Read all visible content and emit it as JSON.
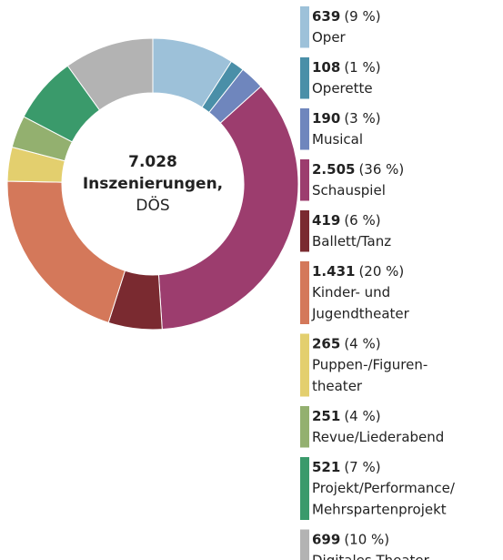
{
  "chart_data": {
    "type": "pie",
    "center_text": {
      "total": {
        "value": 7028,
        "label": "7.028"
      },
      "lines": [
        "Inszenierungen,",
        "DÖS"
      ]
    },
    "categories": [
      [
        "Oper"
      ],
      [
        "Operette"
      ],
      [
        "Musical"
      ],
      [
        "Schauspiel"
      ],
      [
        "Ballett/Tanz"
      ],
      [
        "Kinder- und",
        "Jugendtheater"
      ],
      [
        "Puppen-/Figuren-",
        "theater"
      ],
      [
        "Revue/Liederabend"
      ],
      [
        "Projekt/Performance/",
        "Mehrspartenprojekt"
      ],
      [
        "Digitales Theater"
      ]
    ],
    "values": [
      639,
      108,
      190,
      2505,
      419,
      1431,
      265,
      251,
      521,
      699
    ],
    "value_labels": [
      "639",
      "108",
      "190",
      "2.505",
      "419",
      "1.431",
      "265",
      "251",
      "521",
      "699"
    ],
    "shares": [
      9,
      1,
      3,
      36,
      6,
      20,
      4,
      4,
      7,
      10
    ],
    "share_labels": [
      "(9 %)",
      "(1 %)",
      "(3 %)",
      "(36 %)",
      "(6 %)",
      "(20 %)",
      "(4 %)",
      "(4 %)",
      "(7 %)",
      "(10 %)"
    ],
    "colors": [
      "#9dc1d9",
      "#4a8fa8",
      "#6f86bd",
      "#9c3d6e",
      "#7a2a30",
      "#d4785a",
      "#e3cf6e",
      "#93b06f",
      "#3a9a6b",
      "#b3b3b3"
    ]
  }
}
